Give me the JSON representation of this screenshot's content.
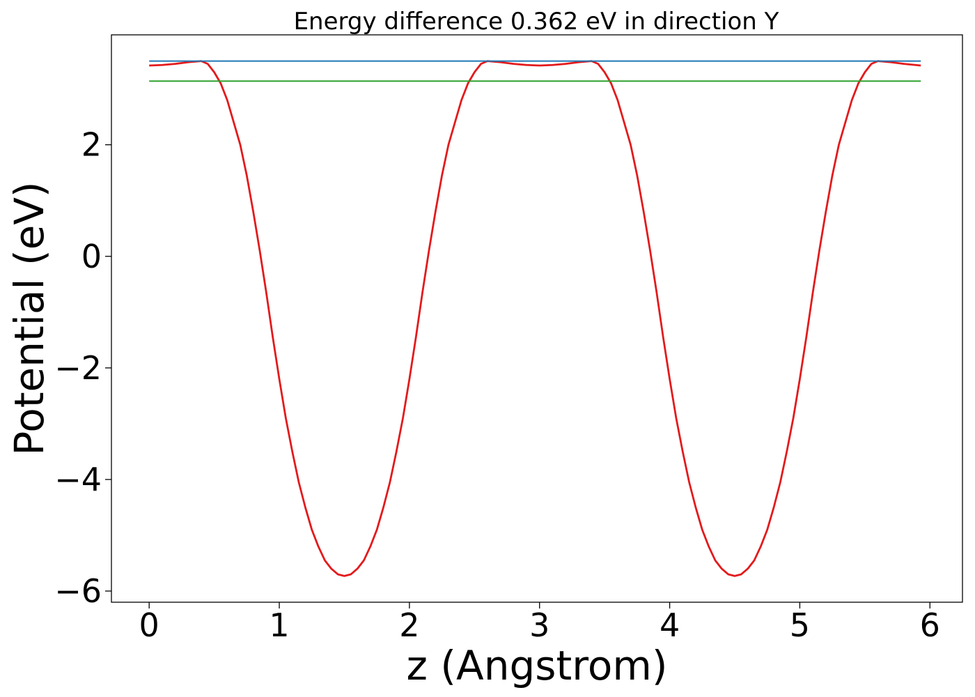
{
  "chart_data": {
    "type": "line",
    "title": "Energy difference 0.362 eV in direction Y",
    "xlabel": "z (Angstrom)",
    "ylabel": "Potential (eV)",
    "xlim": [
      -0.29,
      6.25
    ],
    "ylim": [
      -6.2,
      3.97
    ],
    "x_ticks": [
      0,
      1,
      2,
      3,
      4,
      5,
      6
    ],
    "x_tick_labels": [
      "0",
      "1",
      "2",
      "3",
      "4",
      "5",
      "6"
    ],
    "y_ticks": [
      -6,
      -4,
      -2,
      0,
      2
    ],
    "y_tick_labels": [
      "−6",
      "−4",
      "−2",
      "0",
      "2"
    ],
    "grid": false,
    "series": [
      {
        "kind": "curve",
        "color": "#e31a1c",
        "points": [
          [
            0.0,
            3.42
          ],
          [
            0.1,
            3.43
          ],
          [
            0.2,
            3.45
          ],
          [
            0.3,
            3.48
          ],
          [
            0.4,
            3.5
          ],
          [
            0.45,
            3.45
          ],
          [
            0.5,
            3.3
          ],
          [
            0.55,
            3.1
          ],
          [
            0.6,
            2.8
          ],
          [
            0.65,
            2.4
          ],
          [
            0.7,
            2.0
          ],
          [
            0.75,
            1.45
          ],
          [
            0.8,
            0.8
          ],
          [
            0.85,
            0.1
          ],
          [
            0.9,
            -0.65
          ],
          [
            0.95,
            -1.45
          ],
          [
            1.0,
            -2.2
          ],
          [
            1.05,
            -2.9
          ],
          [
            1.1,
            -3.5
          ],
          [
            1.15,
            -4.05
          ],
          [
            1.2,
            -4.5
          ],
          [
            1.25,
            -4.9
          ],
          [
            1.3,
            -5.2
          ],
          [
            1.35,
            -5.45
          ],
          [
            1.4,
            -5.6
          ],
          [
            1.45,
            -5.7
          ],
          [
            1.5,
            -5.73
          ],
          [
            1.55,
            -5.7
          ],
          [
            1.6,
            -5.6
          ],
          [
            1.65,
            -5.45
          ],
          [
            1.7,
            -5.2
          ],
          [
            1.75,
            -4.9
          ],
          [
            1.8,
            -4.5
          ],
          [
            1.85,
            -4.05
          ],
          [
            1.9,
            -3.5
          ],
          [
            1.95,
            -2.9
          ],
          [
            2.0,
            -2.2
          ],
          [
            2.05,
            -1.45
          ],
          [
            2.1,
            -0.65
          ],
          [
            2.15,
            0.1
          ],
          [
            2.2,
            0.8
          ],
          [
            2.25,
            1.45
          ],
          [
            2.3,
            2.0
          ],
          [
            2.35,
            2.4
          ],
          [
            2.4,
            2.8
          ],
          [
            2.45,
            3.1
          ],
          [
            2.5,
            3.3
          ],
          [
            2.55,
            3.45
          ],
          [
            2.6,
            3.5
          ],
          [
            2.7,
            3.48
          ],
          [
            2.8,
            3.45
          ],
          [
            2.9,
            3.43
          ],
          [
            3.0,
            3.42
          ],
          [
            3.1,
            3.43
          ],
          [
            3.2,
            3.45
          ],
          [
            3.3,
            3.48
          ],
          [
            3.4,
            3.5
          ],
          [
            3.45,
            3.45
          ],
          [
            3.5,
            3.3
          ],
          [
            3.55,
            3.1
          ],
          [
            3.6,
            2.8
          ],
          [
            3.65,
            2.4
          ],
          [
            3.7,
            2.0
          ],
          [
            3.75,
            1.45
          ],
          [
            3.8,
            0.8
          ],
          [
            3.85,
            0.1
          ],
          [
            3.9,
            -0.65
          ],
          [
            3.95,
            -1.45
          ],
          [
            4.0,
            -2.2
          ],
          [
            4.05,
            -2.9
          ],
          [
            4.1,
            -3.5
          ],
          [
            4.15,
            -4.05
          ],
          [
            4.2,
            -4.5
          ],
          [
            4.25,
            -4.9
          ],
          [
            4.3,
            -5.2
          ],
          [
            4.35,
            -5.45
          ],
          [
            4.4,
            -5.6
          ],
          [
            4.45,
            -5.7
          ],
          [
            4.5,
            -5.73
          ],
          [
            4.55,
            -5.7
          ],
          [
            4.6,
            -5.6
          ],
          [
            4.65,
            -5.45
          ],
          [
            4.7,
            -5.2
          ],
          [
            4.75,
            -4.9
          ],
          [
            4.8,
            -4.5
          ],
          [
            4.85,
            -4.05
          ],
          [
            4.9,
            -3.5
          ],
          [
            4.95,
            -2.9
          ],
          [
            5.0,
            -2.2
          ],
          [
            5.05,
            -1.45
          ],
          [
            5.1,
            -0.65
          ],
          [
            5.15,
            0.1
          ],
          [
            5.2,
            0.8
          ],
          [
            5.25,
            1.45
          ],
          [
            5.3,
            2.0
          ],
          [
            5.35,
            2.4
          ],
          [
            5.4,
            2.8
          ],
          [
            5.45,
            3.1
          ],
          [
            5.5,
            3.3
          ],
          [
            5.55,
            3.45
          ],
          [
            5.6,
            3.5
          ],
          [
            5.7,
            3.48
          ],
          [
            5.8,
            3.45
          ],
          [
            5.93,
            3.42
          ]
        ]
      },
      {
        "kind": "hline",
        "color": "#1f77b4",
        "y": 3.5,
        "x_range": [
          0.0,
          5.93
        ]
      },
      {
        "kind": "hline",
        "color": "#2ca02c",
        "y": 3.14,
        "x_range": [
          0.0,
          5.93
        ]
      }
    ]
  }
}
